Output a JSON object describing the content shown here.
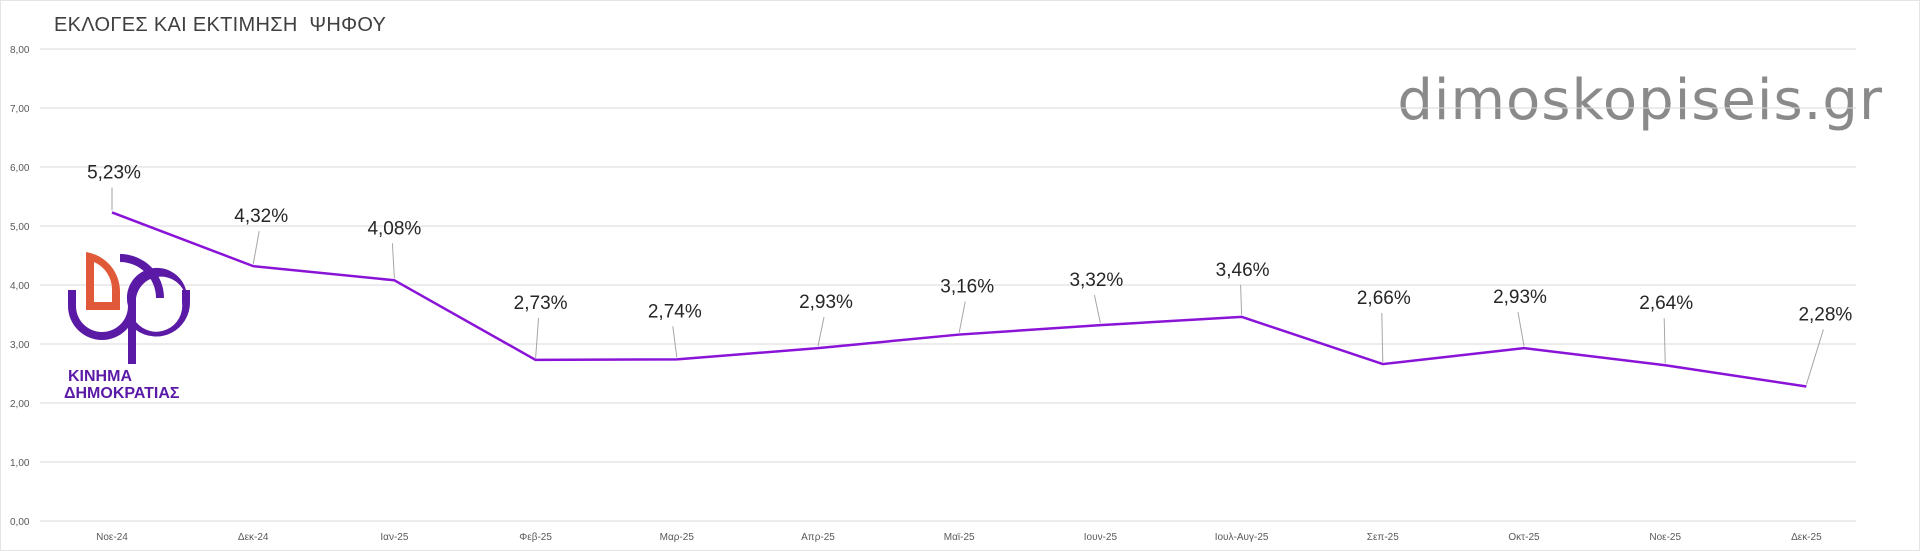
{
  "title": "ΕΚΛΟΓΕΣ ΚΑΙ ΕΚΤΙΜΗΣΗ  ΨΗΦΟΥ",
  "watermark": "dimoskopiseis.gr",
  "logo": {
    "line1": "ΚΙΝΗΜΑ",
    "line2": "ΔΗΜΟΚΡΑΤΙΑΣ",
    "icon": "kinima-dimokratias-logo",
    "colors": {
      "orange": "#e05a3a",
      "purple": "#5b1aa6"
    }
  },
  "colors": {
    "line": "#8a13d8",
    "grid": "#d9d9d9",
    "axis_text": "#595959",
    "label_text": "#262626",
    "leader": "#a6a6a6"
  },
  "chart_data": {
    "type": "line",
    "categories": [
      "Νοε-24",
      "Δεκ-24",
      "Ιαν-25",
      "Φεβ-25",
      "Μαρ-25",
      "Απρ-25",
      "Μαϊ-25",
      "Ιουν-25",
      "Ιουλ-Αυγ-25",
      "Σεπ-25",
      "Οκτ-25",
      "Νοε-25",
      "Δεκ-25"
    ],
    "series": [
      {
        "values": [
          5.23,
          4.32,
          4.08,
          2.73,
          2.74,
          2.93,
          3.16,
          3.32,
          3.46,
          2.66,
          2.93,
          2.64,
          2.28
        ],
        "labels": [
          "5,23%",
          "4,32%",
          "4,08%",
          "2,73%",
          "2,74%",
          "2,93%",
          "3,16%",
          "3,32%",
          "3,46%",
          "2,66%",
          "2,93%",
          "2,64%",
          "2,28%"
        ]
      }
    ],
    "yticks": [
      "0,00",
      "1,00",
      "2,00",
      "3,00",
      "4,00",
      "5,00",
      "6,00",
      "7,00",
      "8,00"
    ],
    "ylim": [
      0,
      8
    ],
    "grid": true,
    "legend": "none"
  }
}
